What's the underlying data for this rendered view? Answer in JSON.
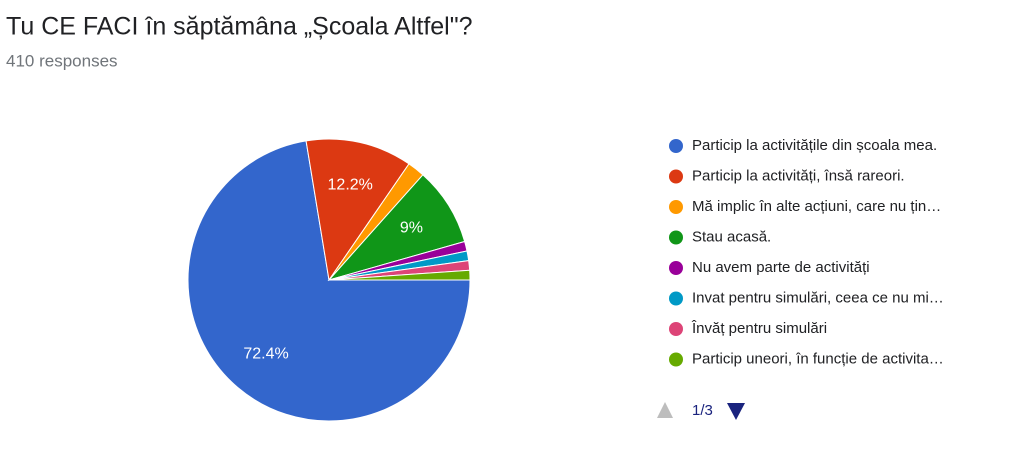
{
  "chart_data": {
    "type": "pie",
    "title": "Tu CE FACI în săptămâna „Școala Altfel\"?",
    "subtitle": "410 responses",
    "categories": [
      "Particip la activitățile din școala mea.",
      "Particip la activități, însă rareori.",
      "Mă implic în alte acțiuni, care nu țin…",
      "Stau acasă.",
      "Nu avem parte de activități",
      "Invat pentru simulări, ceea ce nu mi…",
      "Învăț pentru simulări",
      "Particip uneori, în funcție de activita…"
    ],
    "values": [
      72.4,
      12.2,
      2,
      9,
      1.1,
      1.1,
      1.1,
      1.1
    ],
    "value_labels": [
      "72.4%",
      "12.2%",
      null,
      "9%",
      null,
      null,
      null,
      null
    ],
    "colors": [
      "#3366cc",
      "#dc3912",
      "#ff9900",
      "#109618",
      "#990099",
      "#0099c6",
      "#dd4477",
      "#66aa00"
    ],
    "start_angle": 90,
    "pager": "1/3"
  }
}
